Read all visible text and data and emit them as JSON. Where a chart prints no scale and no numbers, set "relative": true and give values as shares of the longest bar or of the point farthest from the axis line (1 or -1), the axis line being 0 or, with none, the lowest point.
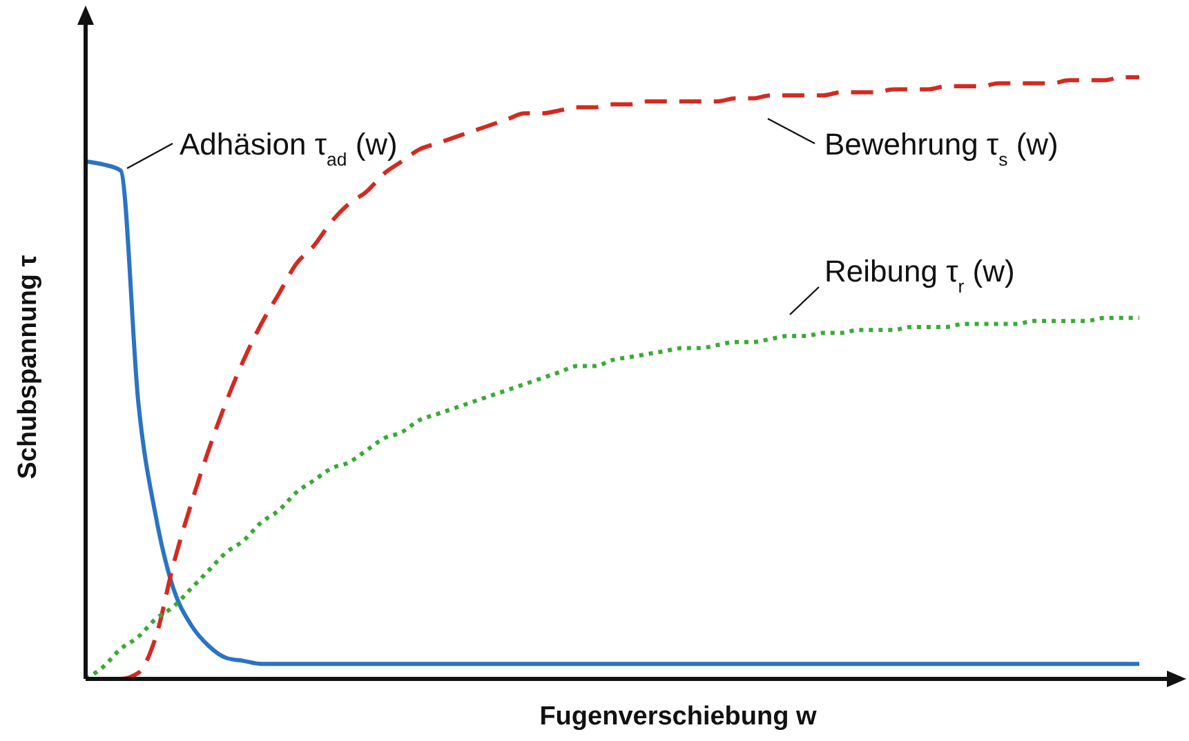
{
  "chart_data": {
    "type": "line",
    "relative": true,
    "xlabel": "Fugenverschiebung w",
    "ylabel": "Schubspannung τ",
    "categories": [
      null,
      null,
      null,
      null,
      null,
      null,
      null,
      null,
      null,
      null,
      null,
      null,
      null,
      null,
      null,
      null,
      null,
      null,
      null,
      null,
      null,
      null,
      null,
      null,
      null,
      null,
      null,
      null,
      null,
      null,
      null,
      null,
      null,
      null,
      null,
      null,
      null,
      null,
      null,
      null,
      null,
      null,
      null,
      null,
      null,
      null,
      null,
      null,
      null,
      null,
      null,
      null,
      null,
      null,
      null,
      null,
      null,
      null,
      null,
      null,
      null
    ],
    "legend": false,
    "marker": "none",
    "series": [
      {
        "name": "Adhäsion τ$_{ad}$ (w)",
        "color": "#2a73c5",
        "line_style": "solid",
        "values": [
          0.86,
          0.855,
          0.845,
          0.46,
          0.27,
          0.15,
          0.09,
          0.055,
          0.035,
          0.03,
          0.025,
          0.025,
          0.025,
          0.025,
          0.025,
          0.025,
          0.025,
          0.025,
          0.025,
          0.025,
          0.025,
          0.025,
          0.025,
          0.025,
          0.025,
          0.025,
          0.025,
          0.025,
          0.025,
          0.025,
          0.025,
          0.025,
          0.025,
          0.025,
          0.025,
          0.025,
          0.025,
          0.025,
          0.025,
          0.025,
          0.025,
          0.025,
          0.025,
          0.025,
          0.025,
          0.025,
          0.025,
          0.025,
          0.025,
          0.025,
          0.025,
          0.025,
          0.025,
          0.025,
          0.025,
          0.025,
          0.025,
          0.025,
          0.025,
          0.025,
          0.025
        ]
      },
      {
        "name": "Bewehrung τ$_{s}$ (w)",
        "color": "#d42a20",
        "line_style": "dashed",
        "values": [
          0,
          0,
          0,
          0.01,
          0.07,
          0.19,
          0.29,
          0.38,
          0.46,
          0.53,
          0.59,
          0.64,
          0.69,
          0.72,
          0.76,
          0.79,
          0.81,
          0.84,
          0.86,
          0.88,
          0.89,
          0.9,
          0.91,
          0.92,
          0.93,
          0.94,
          0.94,
          0.945,
          0.95,
          0.95,
          0.955,
          0.955,
          0.96,
          0.96,
          0.96,
          0.96,
          0.96,
          0.965,
          0.965,
          0.97,
          0.97,
          0.97,
          0.97,
          0.975,
          0.975,
          0.975,
          0.98,
          0.98,
          0.98,
          0.985,
          0.985,
          0.985,
          0.99,
          0.99,
          0.99,
          0.99,
          0.995,
          0.995,
          0.995,
          1,
          1
        ]
      },
      {
        "name": "Reibung τ$_{r}$ (w)",
        "color": "#3aaa35",
        "line_style": "dotted",
        "values": [
          0,
          0.02,
          0.05,
          0.07,
          0.1,
          0.12,
          0.15,
          0.18,
          0.21,
          0.23,
          0.26,
          0.28,
          0.31,
          0.33,
          0.35,
          0.36,
          0.38,
          0.4,
          0.41,
          0.43,
          0.44,
          0.45,
          0.46,
          0.47,
          0.48,
          0.49,
          0.5,
          0.51,
          0.52,
          0.52,
          0.53,
          0.535,
          0.54,
          0.545,
          0.55,
          0.55,
          0.555,
          0.56,
          0.56,
          0.565,
          0.57,
          0.57,
          0.575,
          0.575,
          0.58,
          0.58,
          0.58,
          0.585,
          0.585,
          0.585,
          0.59,
          0.59,
          0.59,
          0.59,
          0.595,
          0.595,
          0.595,
          0.595,
          0.6,
          0.6,
          0.6
        ]
      }
    ]
  }
}
